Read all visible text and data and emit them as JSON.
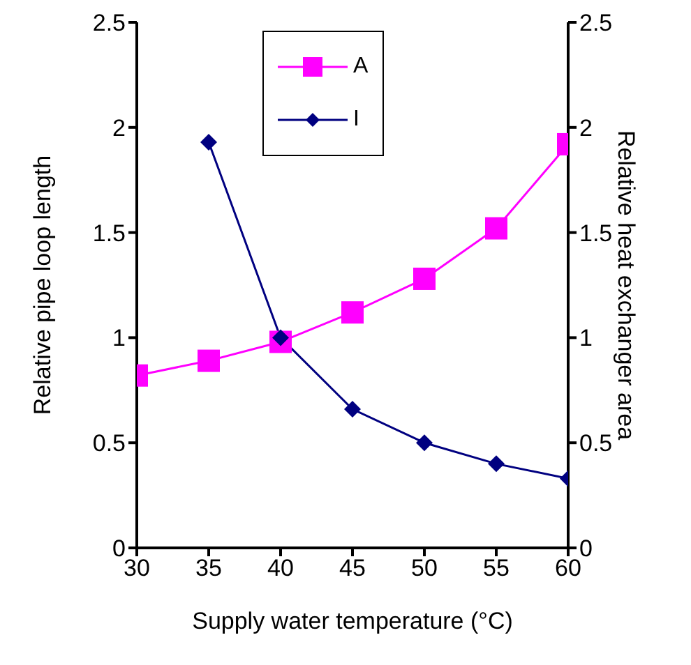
{
  "chart_data": {
    "type": "line",
    "xlabel": "Supply water temperature (°C)",
    "ylabel": "Relative pipe loop length",
    "y2label": "Relative heat exchanger area",
    "x": [
      30,
      35,
      40,
      45,
      50,
      55,
      60
    ],
    "xlim": [
      30,
      60
    ],
    "xticks": [
      30,
      35,
      40,
      45,
      50,
      55,
      60
    ],
    "ylim": [
      0,
      2.5
    ],
    "yticks": [
      0,
      0.5,
      1,
      1.5,
      2,
      2.5
    ],
    "y2lim": [
      0,
      2.5
    ],
    "y2ticks": [
      0,
      0.5,
      1,
      1.5,
      2,
      2.5
    ],
    "series": [
      {
        "name": "A",
        "color": "#ff00ff",
        "marker": "square",
        "values": [
          0.82,
          0.89,
          0.98,
          1.12,
          1.28,
          1.52,
          1.92
        ]
      },
      {
        "name": "I",
        "color": "#000080",
        "marker": "diamond",
        "values": [
          null,
          1.93,
          1.0,
          0.66,
          0.5,
          0.4,
          0.33
        ]
      }
    ],
    "grid": false,
    "legend": "top",
    "line_style": "solid"
  }
}
